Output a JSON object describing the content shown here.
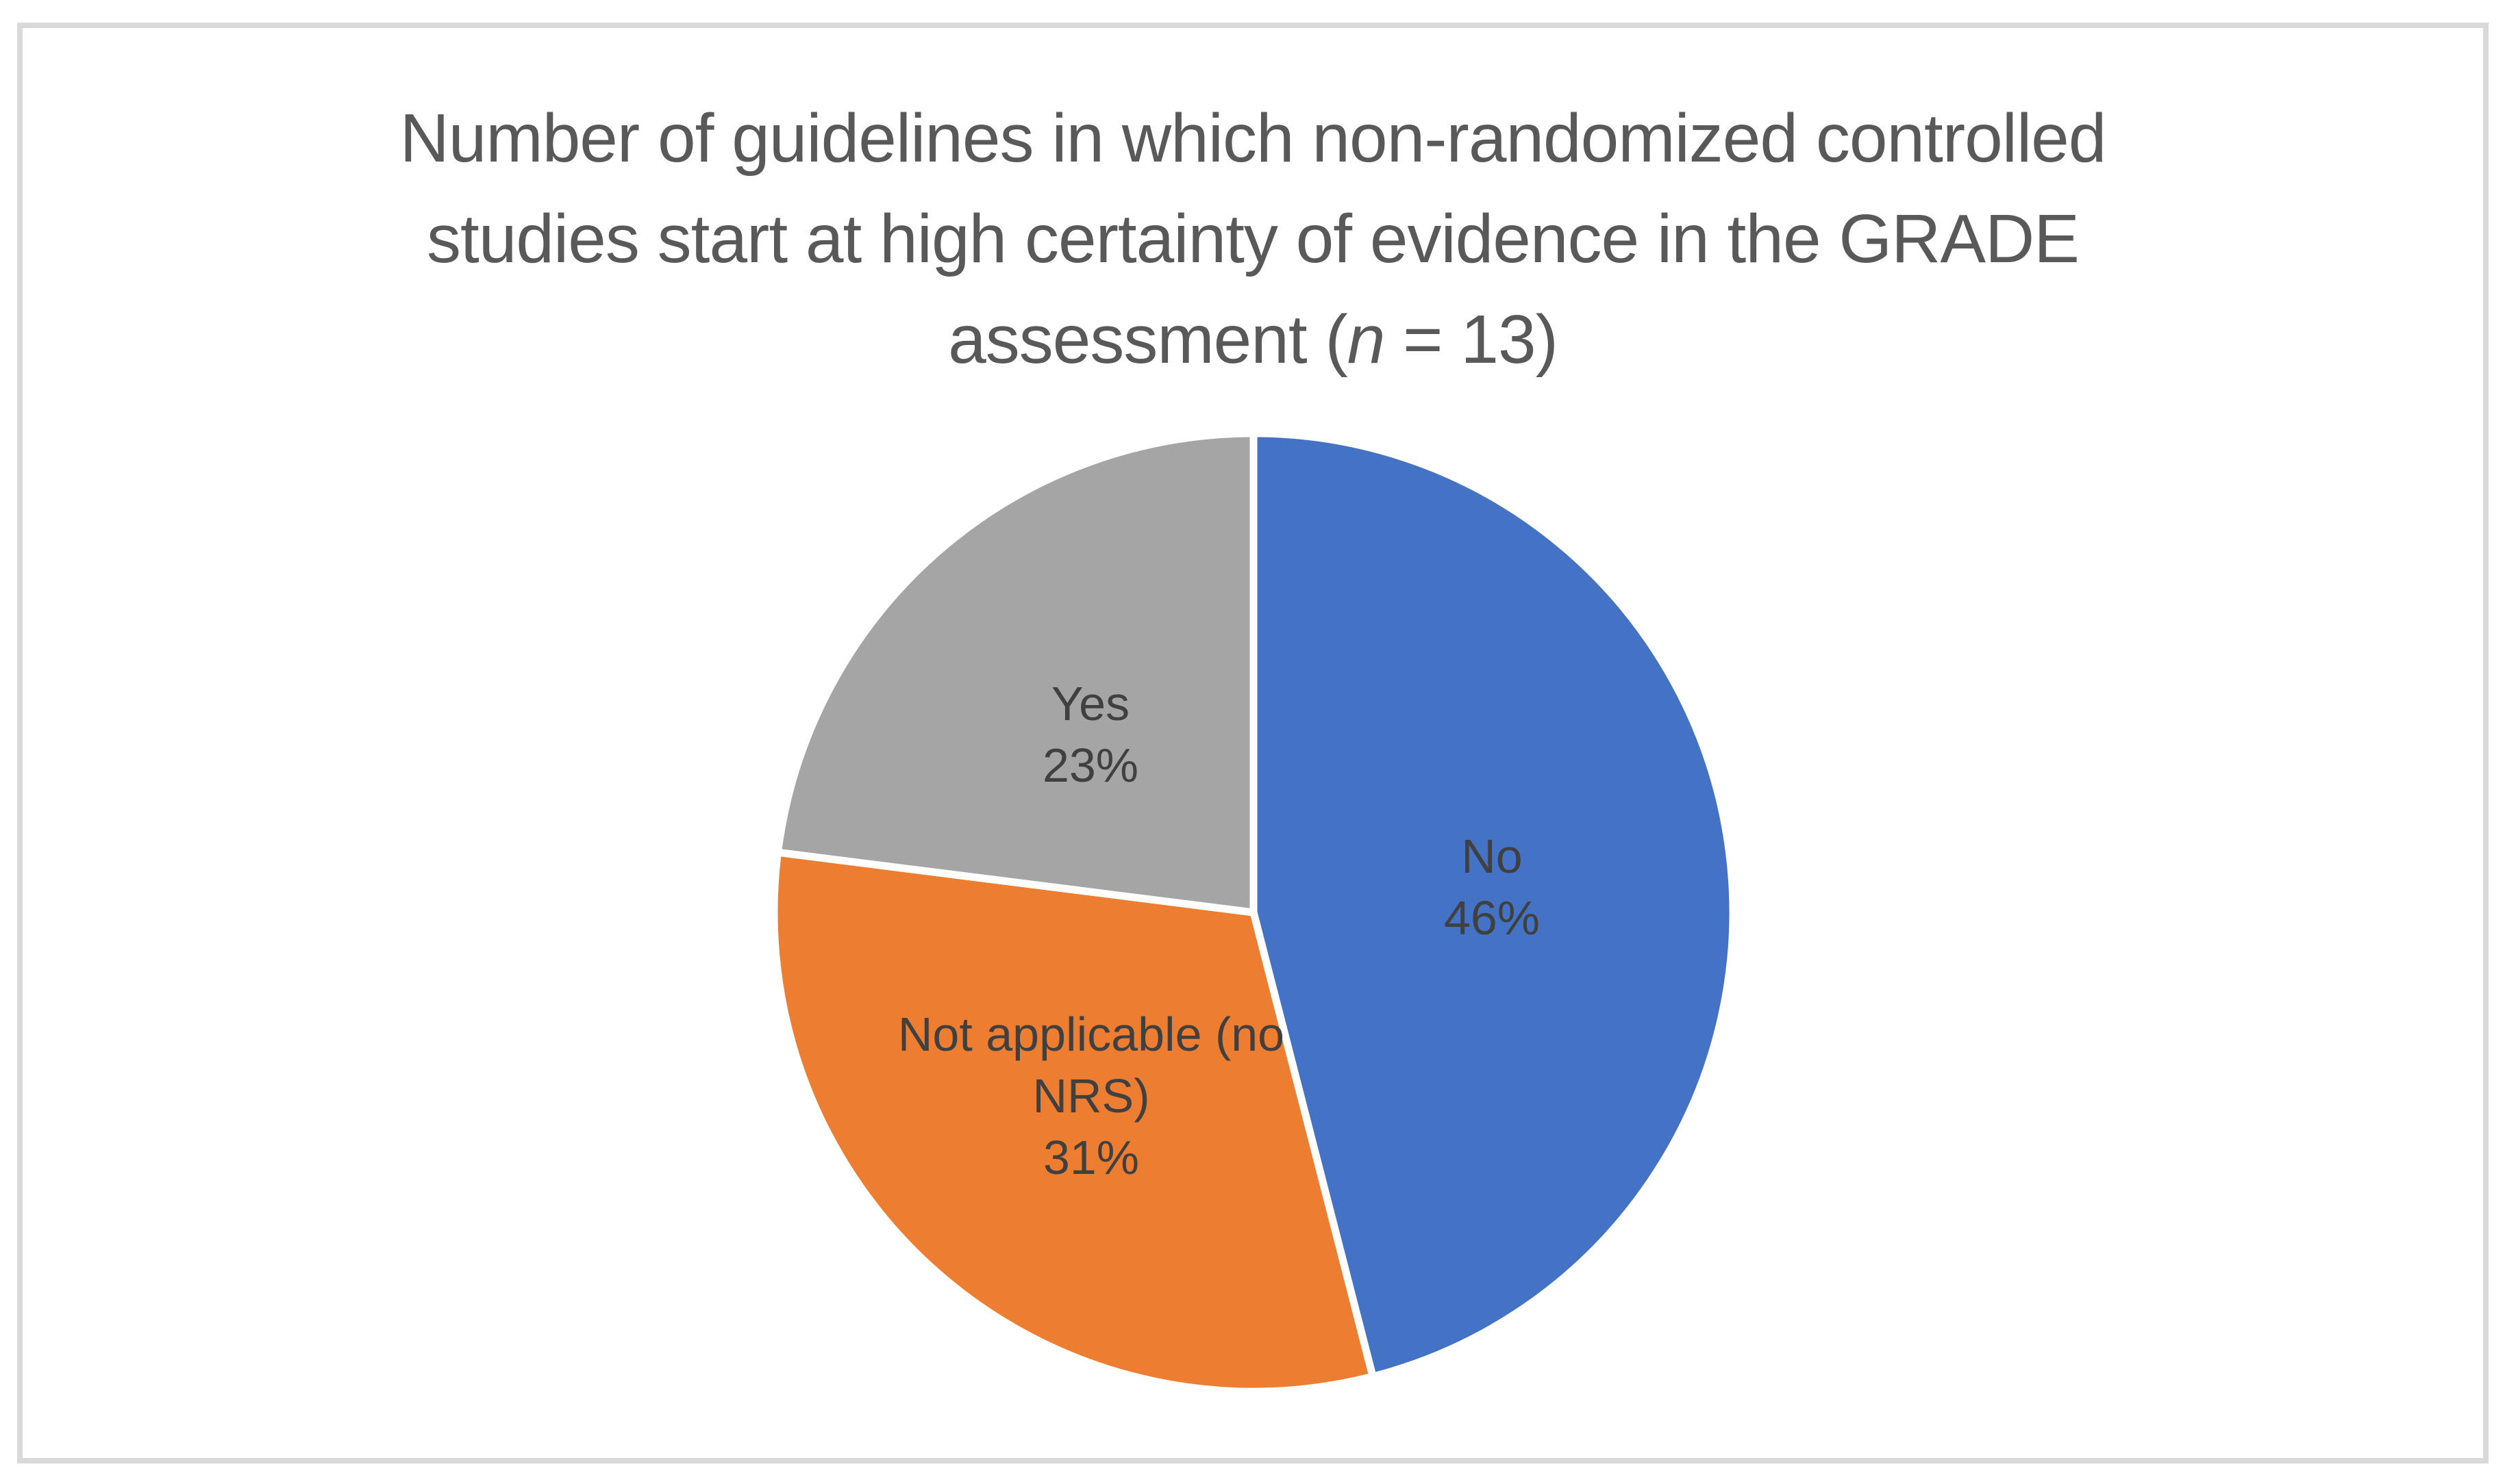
{
  "frame": {
    "background": "#FFFFFF",
    "border_color": "#D9D9D9"
  },
  "title": {
    "full": "Number of guidelines in which non-randomized controlled studies start at high certainty of evidence in the GRADE assessment (n = 13)",
    "line1": "Number of guidelines in which non-randomized controlled",
    "line2": "studies start at high certainty of evidence in the GRADE",
    "line3_pre": "assessment (",
    "line3_italic": "n",
    "line3_post": " = 13)",
    "color": "#595959"
  },
  "chart_data": {
    "type": "pie",
    "title": "Number of guidelines in which non-randomized controlled studies start at high certainty of evidence in the GRADE assessment (n = 13)",
    "n_total": 13,
    "start_angle_deg": 0,
    "direction": "clockwise",
    "legend": "none",
    "separator_color": "#FFFFFF",
    "label_color": "#404040",
    "slices": [
      {
        "id": "no",
        "label": "No",
        "percent": 46,
        "value_text": "46%",
        "color": "#4472C4",
        "label_lines": [
          "No",
          "46%"
        ],
        "label_x": 2178,
        "label_y": 1296
      },
      {
        "id": "not-applicable",
        "label": "Not applicable (no NRS)",
        "percent": 31,
        "value_text": "31%",
        "color": "#ED7D31",
        "label_lines": [
          "Not applicable (no",
          "NRS)",
          "31%"
        ],
        "label_x": 1593,
        "label_y": 1601
      },
      {
        "id": "yes",
        "label": "Yes",
        "percent": 23,
        "value_text": "23%",
        "color": "#A5A5A5",
        "label_lines": [
          "Yes",
          "23%"
        ],
        "label_x": 1592,
        "label_y": 1073
      }
    ]
  }
}
